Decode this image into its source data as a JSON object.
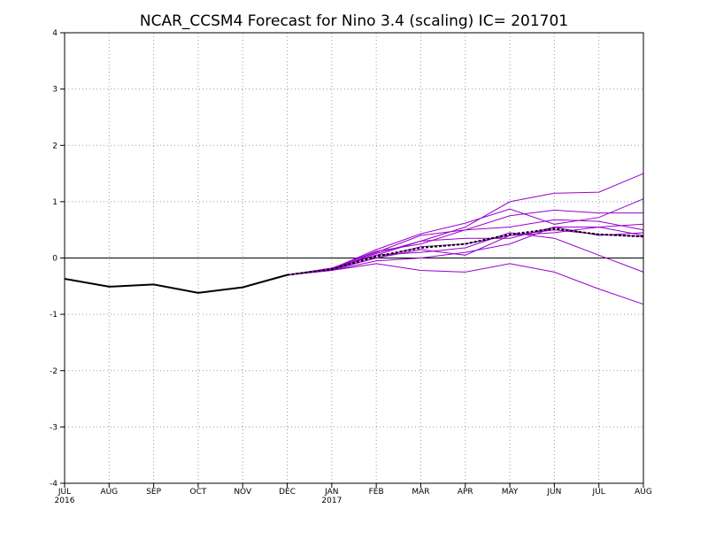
{
  "chart_data": {
    "type": "line",
    "title": "NCAR_CCSM4 Forecast for Nino 3.4 (scaling)  IC= 201701",
    "xlabel": "",
    "ylabel": "",
    "categories": [
      "JUL",
      "AUG",
      "SEP",
      "OCT",
      "NOV",
      "DEC",
      "JAN",
      "FEB",
      "MAR",
      "APR",
      "MAY",
      "JUN",
      "JUL",
      "AUG"
    ],
    "year_labels": [
      {
        "index": 0,
        "text": "2016"
      },
      {
        "index": 6,
        "text": "2017"
      }
    ],
    "ylim": [
      -4,
      4
    ],
    "yticks": [
      -4,
      -3,
      -2,
      -1,
      0,
      1,
      2,
      3,
      4
    ],
    "grid": true,
    "observed": {
      "color": "#000000",
      "values": [
        -0.37,
        -0.51,
        -0.47,
        -0.62,
        -0.52,
        -0.3
      ]
    },
    "ensemble_color": "#9900cc",
    "ensemble": [
      [
        -0.3,
        -0.2,
        0.05,
        0.3,
        0.55,
        1.0,
        1.15,
        1.17,
        1.5
      ],
      [
        -0.3,
        -0.18,
        0.1,
        0.4,
        0.5,
        0.75,
        0.85,
        0.8,
        0.8
      ],
      [
        -0.3,
        -0.19,
        0.15,
        0.43,
        0.62,
        0.87,
        0.6,
        0.72,
        1.05
      ],
      [
        -0.3,
        -0.21,
        0.0,
        0.2,
        0.25,
        0.4,
        0.5,
        0.42,
        0.38
      ],
      [
        -0.3,
        -0.22,
        -0.1,
        -0.22,
        -0.25,
        -0.1,
        -0.25,
        -0.55,
        -0.82
      ],
      [
        -0.3,
        -0.18,
        0.05,
        0.1,
        0.18,
        0.45,
        0.35,
        0.05,
        -0.25
      ],
      [
        -0.3,
        -0.2,
        0.08,
        0.3,
        0.35,
        0.35,
        0.55,
        0.55,
        0.6
      ],
      [
        -0.3,
        -0.22,
        -0.05,
        0.0,
        0.1,
        0.25,
        0.55,
        0.4,
        0.45
      ],
      [
        -0.3,
        -0.2,
        0.0,
        0.15,
        0.05,
        0.4,
        0.45,
        0.55,
        0.4
      ],
      [
        -0.3,
        -0.19,
        0.12,
        0.25,
        0.5,
        0.55,
        0.68,
        0.65,
        0.5
      ]
    ],
    "ensemble_mean": {
      "color": "#000000",
      "values": [
        -0.3,
        -0.2,
        0.03,
        0.18,
        0.25,
        0.42,
        0.52,
        0.42,
        0.38
      ]
    },
    "forecast_start_index": 5
  }
}
